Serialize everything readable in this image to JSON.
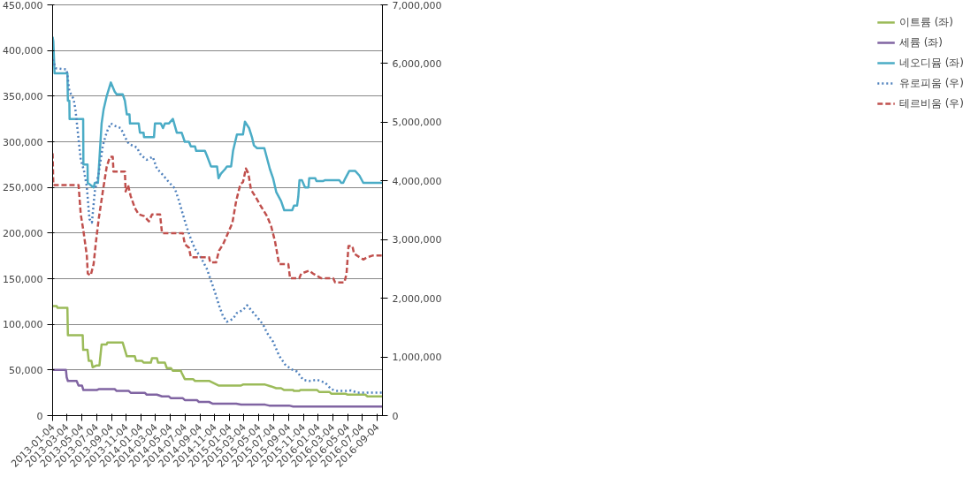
{
  "chart_data": {
    "type": "line",
    "grid": "y",
    "legend": "right",
    "xlim": [
      "2013-01-04",
      "2016-09-25"
    ],
    "xticks": [
      "2013-01-04",
      "2013-03-04",
      "2013-05-04",
      "2013-07-04",
      "2013-09-04",
      "2013-11-04",
      "2014-01-04",
      "2014-03-04",
      "2014-05-04",
      "2014-07-04",
      "2014-09-04",
      "2014-11-04",
      "2015-01-04",
      "2015-03-04",
      "2015-05-04",
      "2015-07-04",
      "2015-09-04",
      "2015-11-04",
      "2016-01-04",
      "2016-03-04",
      "2016-05-04",
      "2016-07-04",
      "2016-09-04"
    ],
    "ylim": [
      0,
      450000
    ],
    "yticks": [
      {
        "value": 0,
        "label": "0"
      },
      {
        "value": 50000,
        "label": "50,000"
      },
      {
        "value": 100000,
        "label": "100,000"
      },
      {
        "value": 150000,
        "label": "150,000"
      },
      {
        "value": 200000,
        "label": "200,000"
      },
      {
        "value": 250000,
        "label": "250,000"
      },
      {
        "value": 300000,
        "label": "300,000"
      },
      {
        "value": 350000,
        "label": "350,000"
      },
      {
        "value": 400000,
        "label": "400,000"
      },
      {
        "value": 450000,
        "label": "450,000"
      }
    ],
    "y2lim": [
      0,
      7000000
    ],
    "y2ticks": [
      {
        "value": 0,
        "label": "0"
      },
      {
        "value": 1000000,
        "label": "1,000,000"
      },
      {
        "value": 2000000,
        "label": "2,000,000"
      },
      {
        "value": 3000000,
        "label": "3,000,000"
      },
      {
        "value": 4000000,
        "label": "4,000,000"
      },
      {
        "value": 5000000,
        "label": "5,000,000"
      },
      {
        "value": 6000000,
        "label": "6,000,000"
      },
      {
        "value": 7000000,
        "label": "7,000,000"
      }
    ],
    "series": [
      {
        "name": "이트륨 (좌)",
        "color": "#9bbb59",
        "line_style": "solid",
        "x": [
          "2013-01-04",
          "2013-01-21",
          "2013-01-24",
          "2013-03-06",
          "2013-03-08",
          "2013-05-08",
          "2013-05-10",
          "2013-05-28",
          "2013-06-02",
          "2013-06-13",
          "2013-06-18",
          "2013-07-05",
          "2013-07-16",
          "2013-07-25",
          "2013-08-15",
          "2013-08-18",
          "2013-10-20",
          "2013-10-29",
          "2013-11-06",
          "2013-12-09",
          "2013-12-14",
          "2014-01-08",
          "2014-01-14",
          "2014-02-13",
          "2014-02-18",
          "2014-03-10",
          "2014-03-15",
          "2014-04-12",
          "2014-04-20",
          "2014-05-07",
          "2014-05-15",
          "2014-06-17",
          "2014-06-20",
          "2014-07-03",
          "2014-08-06",
          "2014-08-14",
          "2014-10-11",
          "2014-11-19",
          "2015-02-20",
          "2015-02-28",
          "2015-05-30",
          "2015-06-24",
          "2015-07-15",
          "2015-08-04",
          "2015-08-17",
          "2015-09-23",
          "2015-09-26",
          "2015-10-18",
          "2015-10-23",
          "2015-12-31",
          "2016-01-08",
          "2016-02-19",
          "2016-02-27",
          "2016-04-25",
          "2016-05-03",
          "2016-07-16",
          "2016-07-25",
          "2016-09-25"
        ],
        "values": [
          120000,
          120000,
          118000,
          118000,
          88000,
          88000,
          72000,
          72000,
          60000,
          60000,
          53000,
          55000,
          55000,
          78000,
          78000,
          80000,
          80000,
          72000,
          65000,
          65000,
          60000,
          60000,
          58000,
          58000,
          63000,
          63000,
          58000,
          58000,
          52000,
          52000,
          49000,
          49000,
          47000,
          40000,
          40000,
          38000,
          38000,
          33000,
          33000,
          34000,
          34000,
          32000,
          30000,
          30000,
          28000,
          28000,
          27000,
          27000,
          28000,
          28000,
          26000,
          26000,
          24000,
          24000,
          23000,
          23000,
          21000,
          21000
        ]
      },
      {
        "name": "세륨 (좌)",
        "color": "#8064a2",
        "line_style": "solid",
        "x": [
          "2013-01-04",
          "2013-02-28",
          "2013-03-03",
          "2013-03-08",
          "2013-04-13",
          "2013-04-21",
          "2013-05-05",
          "2013-05-11",
          "2013-07-05",
          "2013-07-13",
          "2013-09-17",
          "2013-09-25",
          "2013-11-14",
          "2013-11-22",
          "2014-01-19",
          "2014-01-27",
          "2014-03-10",
          "2014-03-31",
          "2014-04-28",
          "2014-05-07",
          "2014-06-25",
          "2014-07-03",
          "2014-08-22",
          "2014-08-30",
          "2014-10-11",
          "2014-10-27",
          "2015-01-31",
          "2015-02-20",
          "2015-05-30",
          "2015-06-16",
          "2015-09-06",
          "2015-09-23",
          "2016-09-25"
        ],
        "values": [
          50000,
          50000,
          42000,
          38000,
          38000,
          33000,
          33000,
          28000,
          28000,
          29000,
          29000,
          27000,
          27000,
          25000,
          25000,
          23000,
          23000,
          21000,
          21000,
          19000,
          19000,
          17000,
          17000,
          15000,
          15000,
          13000,
          13000,
          12000,
          12000,
          11000,
          11000,
          10000,
          10000
        ]
      },
      {
        "name": "네오디뮴 (좌)",
        "color": "#4bacc6",
        "line_style": "solid",
        "x": [
          "2013-01-04",
          "2013-01-07",
          "2013-01-12",
          "2013-03-06",
          "2013-03-08",
          "2013-03-14",
          "2013-03-15",
          "2013-05-10",
          "2013-05-11",
          "2013-05-28",
          "2013-05-29",
          "2013-06-22",
          "2013-06-27",
          "2013-07-10",
          "2013-07-25",
          "2013-08-02",
          "2013-08-15",
          "2013-09-01",
          "2013-09-17",
          "2013-09-25",
          "2013-10-20",
          "2013-10-29",
          "2013-11-06",
          "2013-11-17",
          "2013-11-19",
          "2013-12-25",
          "2013-12-30",
          "2014-01-14",
          "2014-01-16",
          "2014-02-26",
          "2014-03-02",
          "2014-03-26",
          "2014-04-04",
          "2014-04-12",
          "2014-04-28",
          "2014-05-15",
          "2014-05-31",
          "2014-06-20",
          "2014-07-03",
          "2014-07-20",
          "2014-07-28",
          "2014-08-14",
          "2014-08-19",
          "2014-09-24",
          "2014-10-02",
          "2014-10-19",
          "2014-11-13",
          "2014-11-19",
          "2014-11-29",
          "2014-12-16",
          "2014-12-24",
          "2015-01-10",
          "2015-01-18",
          "2015-02-03",
          "2015-02-28",
          "2015-03-08",
          "2015-03-25",
          "2015-04-06",
          "2015-04-14",
          "2015-04-27",
          "2015-05-27",
          "2015-06-04",
          "2015-06-19",
          "2015-07-02",
          "2015-07-15",
          "2015-08-04",
          "2015-08-17",
          "2015-09-19",
          "2015-09-26",
          "2015-10-09",
          "2015-10-14",
          "2015-10-19",
          "2015-10-29",
          "2015-11-11",
          "2015-11-25",
          "2015-11-28",
          "2015-12-23",
          "2015-12-28",
          "2016-01-25",
          "2016-02-02",
          "2016-03-31",
          "2016-04-08",
          "2016-04-16",
          "2016-04-25",
          "2016-05-11",
          "2016-06-05",
          "2016-06-22",
          "2016-07-08",
          "2016-09-25"
        ],
        "values": [
          415000,
          410000,
          375000,
          375000,
          345000,
          345000,
          325000,
          325000,
          275000,
          275000,
          255000,
          250000,
          255000,
          255000,
          320000,
          335000,
          350000,
          365000,
          355000,
          352000,
          352000,
          345000,
          330000,
          330000,
          320000,
          320000,
          310000,
          310000,
          305000,
          305000,
          320000,
          320000,
          315000,
          320000,
          320000,
          325000,
          310000,
          310000,
          300000,
          300000,
          295000,
          295000,
          290000,
          290000,
          285000,
          273000,
          273000,
          260000,
          265000,
          270000,
          273000,
          273000,
          290000,
          308000,
          308000,
          322000,
          315000,
          305000,
          296000,
          293000,
          293000,
          285000,
          270000,
          260000,
          245000,
          235000,
          225000,
          225000,
          230000,
          230000,
          240000,
          258000,
          258000,
          250000,
          250000,
          260000,
          260000,
          257000,
          257000,
          258000,
          258000,
          255000,
          255000,
          260000,
          268000,
          268000,
          263000,
          255000,
          255000
        ]
      },
      {
        "name": "유로피움 (우)",
        "color": "#4f81bd",
        "line_style": "dotted",
        "axis": "y2",
        "x": [
          "2013-01-04",
          "2013-01-17",
          "2013-03-03",
          "2013-03-14",
          "2013-03-31",
          "2013-04-08",
          "2013-04-18",
          "2013-04-30",
          "2013-05-13",
          "2013-05-25",
          "2013-06-05",
          "2013-06-15",
          "2013-06-27",
          "2013-07-13",
          "2013-07-30",
          "2013-08-15",
          "2013-09-01",
          "2013-09-17",
          "2013-10-12",
          "2013-10-29",
          "2013-11-14",
          "2013-12-17",
          "2014-01-03",
          "2014-01-27",
          "2014-02-21",
          "2014-03-10",
          "2014-04-04",
          "2014-04-28",
          "2014-05-23",
          "2014-06-09",
          "2014-06-25",
          "2014-07-12",
          "2014-07-28",
          "2014-08-14",
          "2014-09-08",
          "2014-10-02",
          "2014-10-19",
          "2014-11-04",
          "2014-11-21",
          "2014-12-08",
          "2014-12-24",
          "2015-01-18",
          "2015-02-03",
          "2015-02-28",
          "2015-03-17",
          "2015-04-02",
          "2015-04-27",
          "2015-05-22",
          "2015-06-07",
          "2015-07-02",
          "2015-07-27",
          "2015-08-21",
          "2015-09-15",
          "2015-10-09",
          "2015-11-03",
          "2015-11-28",
          "2015-12-31",
          "2016-02-02",
          "2016-02-27",
          "2016-03-23",
          "2016-04-25",
          "2016-05-19",
          "2016-06-13",
          "2016-09-25"
        ],
        "values": [
          6070000,
          5920000,
          5900000,
          5530000,
          5400000,
          5220000,
          4830000,
          4360000,
          4180000,
          3900000,
          3350000,
          3290000,
          3820000,
          4130000,
          4600000,
          4830000,
          4980000,
          4940000,
          4900000,
          4750000,
          4630000,
          4570000,
          4440000,
          4360000,
          4410000,
          4210000,
          4100000,
          3980000,
          3870000,
          3660000,
          3430000,
          3200000,
          3010000,
          2840000,
          2690000,
          2500000,
          2300000,
          2110000,
          1880000,
          1690000,
          1600000,
          1650000,
          1750000,
          1800000,
          1880000,
          1800000,
          1680000,
          1550000,
          1410000,
          1260000,
          1020000,
          870000,
          790000,
          750000,
          610000,
          590000,
          610000,
          560000,
          450000,
          420000,
          420000,
          430000,
          390000,
          390000
        ]
      },
      {
        "name": "테르비움 (우)",
        "color": "#c0504d",
        "line_style": "dashed",
        "axis": "y2",
        "x": [
          "2013-01-04",
          "2013-01-07",
          "2013-04-21",
          "2013-04-30",
          "2013-05-11",
          "2013-05-25",
          "2013-05-29",
          "2013-06-10",
          "2013-06-22",
          "2013-07-02",
          "2013-07-13",
          "2013-07-30",
          "2013-08-15",
          "2013-08-28",
          "2013-09-09",
          "2013-09-12",
          "2013-10-29",
          "2013-11-01",
          "2013-11-11",
          "2013-11-22",
          "2013-12-09",
          "2013-12-25",
          "2014-01-16",
          "2014-02-05",
          "2014-02-18",
          "2014-03-23",
          "2014-03-31",
          "2014-06-25",
          "2014-07-03",
          "2014-07-20",
          "2014-07-28",
          "2014-10-11",
          "2014-10-16",
          "2014-11-09",
          "2014-11-21",
          "2014-12-08",
          "2014-12-24",
          "2015-01-15",
          "2015-01-31",
          "2015-02-17",
          "2015-02-28",
          "2015-03-12",
          "2015-03-22",
          "2015-04-02",
          "2015-04-19",
          "2015-05-14",
          "2015-06-07",
          "2015-06-24",
          "2015-07-10",
          "2015-07-27",
          "2015-09-03",
          "2015-09-10",
          "2015-10-18",
          "2015-10-26",
          "2015-11-28",
          "2015-12-14",
          "2016-01-17",
          "2016-03-06",
          "2016-03-14",
          "2016-04-21",
          "2016-04-30",
          "2016-05-08",
          "2016-05-24",
          "2016-05-31",
          "2016-06-22",
          "2016-07-08",
          "2016-07-25",
          "2016-08-18",
          "2016-09-25"
        ],
        "values": [
          4470000,
          3930000,
          3930000,
          3430000,
          3150000,
          2730000,
          2420000,
          2390000,
          2580000,
          2970000,
          3350000,
          3820000,
          4240000,
          4410000,
          4410000,
          4160000,
          4160000,
          3820000,
          3930000,
          3740000,
          3540000,
          3430000,
          3400000,
          3310000,
          3430000,
          3430000,
          3110000,
          3110000,
          2920000,
          2860000,
          2700000,
          2700000,
          2610000,
          2610000,
          2810000,
          2920000,
          3070000,
          3280000,
          3660000,
          3940000,
          3980000,
          4210000,
          4130000,
          3850000,
          3740000,
          3560000,
          3400000,
          3230000,
          2970000,
          2580000,
          2580000,
          2340000,
          2340000,
          2420000,
          2470000,
          2420000,
          2340000,
          2340000,
          2270000,
          2270000,
          2420000,
          2890000,
          2890000,
          2760000,
          2700000,
          2660000,
          2700000,
          2730000,
          2730000
        ]
      }
    ]
  }
}
